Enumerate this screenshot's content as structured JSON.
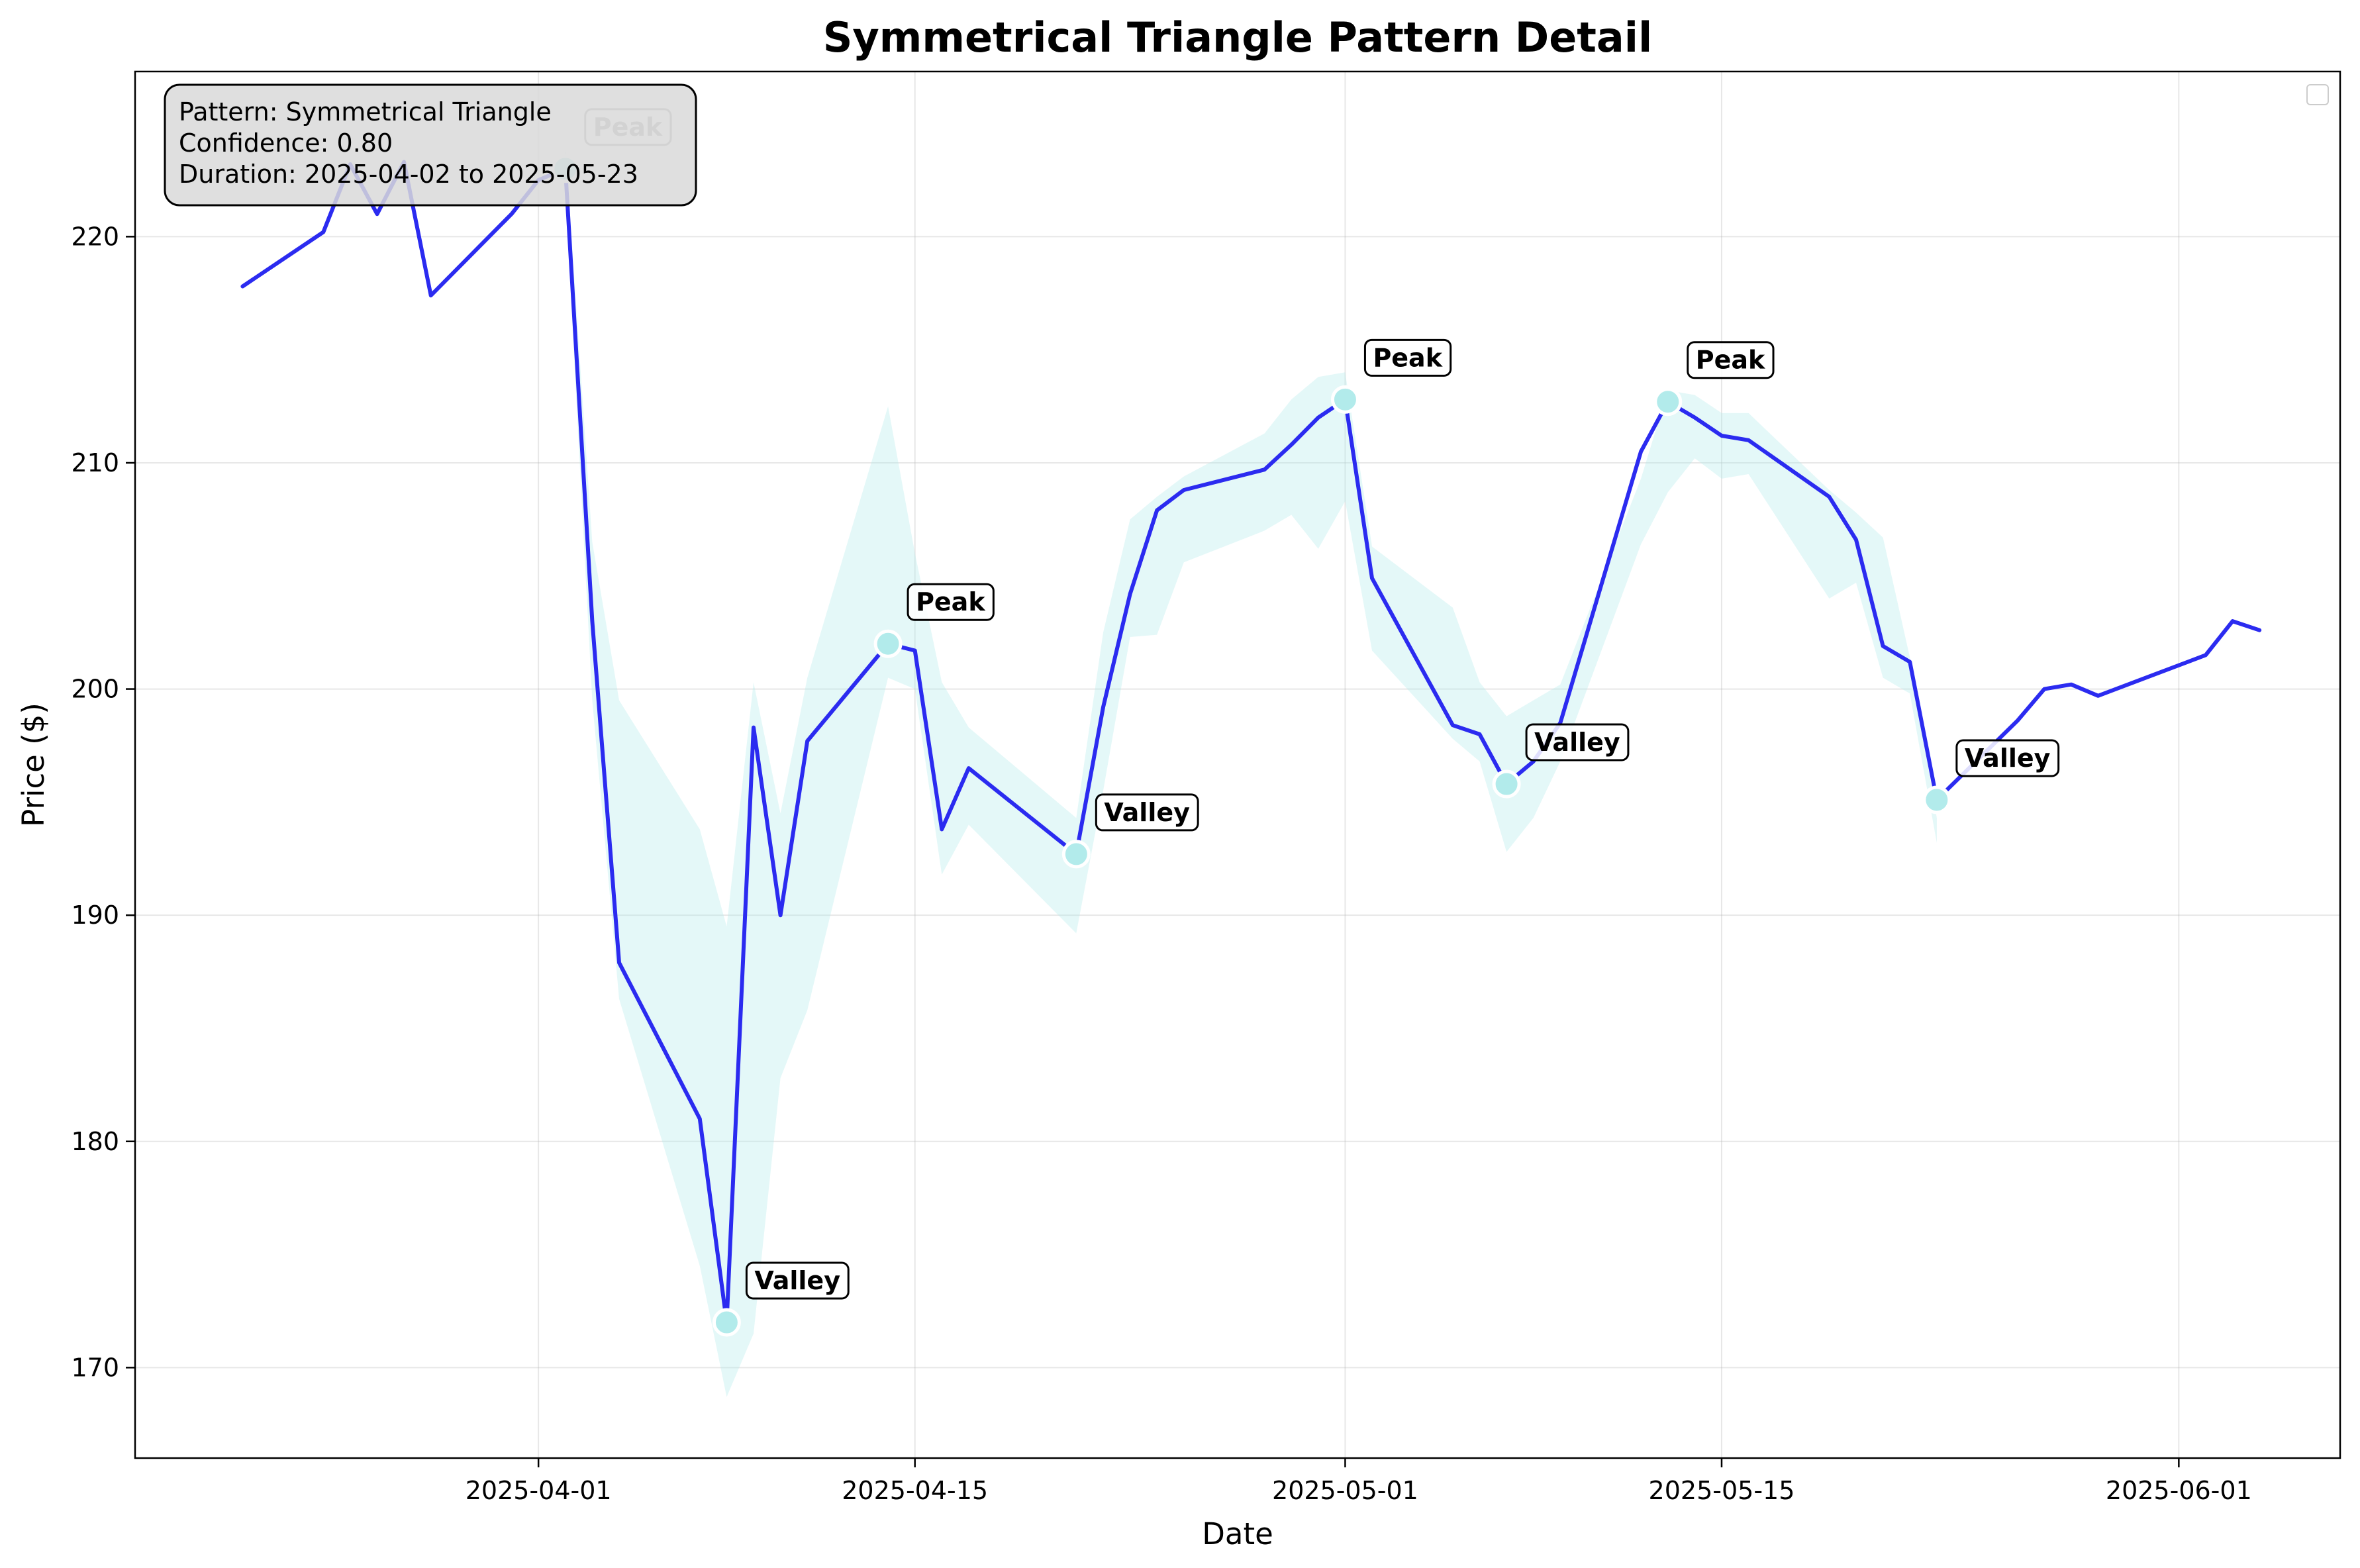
{
  "chart_data": {
    "type": "line",
    "title": "Symmetrical Triangle Pattern Detail",
    "xlabel": "Date",
    "ylabel": "Price ($)",
    "xlim": [
      "2025-03-17",
      "2025-06-07"
    ],
    "ylim": [
      166,
      227.3
    ],
    "x_ticks": [
      "2025-04-01",
      "2025-04-15",
      "2025-05-01",
      "2025-05-15",
      "2025-06-01"
    ],
    "y_ticks": [
      170,
      180,
      190,
      200,
      210,
      220
    ],
    "grid": true,
    "legend": "top-right (empty)",
    "colors": {
      "line": "#2b2bf0",
      "band": "#b2ebeb",
      "marker": "#b2ebeb",
      "info_box": "#d9d9d9"
    },
    "series": [
      {
        "x": [
          "2025-03-21",
          "2025-03-24",
          "2025-03-25",
          "2025-03-26",
          "2025-03-27",
          "2025-03-28",
          "2025-03-31",
          "2025-04-01",
          "2025-04-02",
          "2025-04-03",
          "2025-04-04",
          "2025-04-07",
          "2025-04-08",
          "2025-04-09",
          "2025-04-10",
          "2025-04-11",
          "2025-04-14",
          "2025-04-15",
          "2025-04-16",
          "2025-04-17",
          "2025-04-21",
          "2025-04-22",
          "2025-04-23",
          "2025-04-24",
          "2025-04-25",
          "2025-04-28",
          "2025-04-29",
          "2025-04-30",
          "2025-05-01",
          "2025-05-02",
          "2025-05-05",
          "2025-05-06",
          "2025-05-07",
          "2025-05-08",
          "2025-05-09",
          "2025-05-12",
          "2025-05-13",
          "2025-05-14",
          "2025-05-15",
          "2025-05-16",
          "2025-05-19",
          "2025-05-20",
          "2025-05-21",
          "2025-05-22",
          "2025-05-23",
          "2025-05-26",
          "2025-05-27",
          "2025-05-28",
          "2025-05-29",
          "2025-06-02",
          "2025-06-03",
          "2025-06-04"
        ],
        "values": [
          217.8,
          220.2,
          223.2,
          221.0,
          223.3,
          217.4,
          221.0,
          222.5,
          223.0,
          203.0,
          187.9,
          181.0,
          172.0,
          198.3,
          190.0,
          197.7,
          202.0,
          201.7,
          193.8,
          196.5,
          192.7,
          199.2,
          204.2,
          207.9,
          208.8,
          209.7,
          210.8,
          212.0,
          212.8,
          204.9,
          198.4,
          198.0,
          195.8,
          196.8,
          198.5,
          210.5,
          212.7,
          212.0,
          211.2,
          211.0,
          208.5,
          206.6,
          201.9,
          201.2,
          195.1,
          198.6,
          200.0,
          200.2,
          199.7,
          201.5,
          203.0,
          202.6
        ]
      }
    ],
    "confidence_band": {
      "x": [
        "2025-04-02",
        "2025-04-03",
        "2025-04-04",
        "2025-04-07",
        "2025-04-08",
        "2025-04-09",
        "2025-04-10",
        "2025-04-11",
        "2025-04-14",
        "2025-04-15",
        "2025-04-16",
        "2025-04-17",
        "2025-04-21",
        "2025-04-22",
        "2025-04-23",
        "2025-04-24",
        "2025-04-25",
        "2025-04-28",
        "2025-04-29",
        "2025-04-30",
        "2025-05-01",
        "2025-05-02",
        "2025-05-05",
        "2025-05-06",
        "2025-05-07",
        "2025-05-08",
        "2025-05-09",
        "2025-05-12",
        "2025-05-13",
        "2025-05-14",
        "2025-05-15",
        "2025-05-16",
        "2025-05-19",
        "2025-05-20",
        "2025-05-21",
        "2025-05-22",
        "2025-05-23"
      ],
      "upper": [
        224.0,
        206.5,
        199.5,
        193.8,
        189.5,
        200.3,
        194.5,
        200.5,
        212.5,
        206.0,
        200.3,
        198.3,
        194.3,
        202.5,
        207.5,
        208.5,
        209.4,
        211.3,
        212.8,
        213.8,
        214.0,
        206.3,
        203.6,
        200.3,
        198.8,
        199.5,
        200.2,
        209.3,
        213.2,
        213.0,
        212.2,
        212.2,
        208.8,
        207.8,
        206.7,
        201.4,
        194.3
      ],
      "lower": [
        222.0,
        199.5,
        186.3,
        174.5,
        168.7,
        171.5,
        182.8,
        185.8,
        200.5,
        200.0,
        191.8,
        194.0,
        189.2,
        195.5,
        202.3,
        202.4,
        205.6,
        207.0,
        207.7,
        206.2,
        208.3,
        201.7,
        197.8,
        196.8,
        192.8,
        194.3,
        196.8,
        206.4,
        208.7,
        210.2,
        209.3,
        209.5,
        204.0,
        204.7,
        200.5,
        199.8,
        193.2
      ]
    },
    "annotations": [
      {
        "date": "2025-04-02",
        "value": 223.0,
        "label": "Peak"
      },
      {
        "date": "2025-04-08",
        "value": 172.0,
        "label": "Valley"
      },
      {
        "date": "2025-04-14",
        "value": 202.0,
        "label": "Peak"
      },
      {
        "date": "2025-04-21",
        "value": 192.7,
        "label": "Valley"
      },
      {
        "date": "2025-05-01",
        "value": 212.8,
        "label": "Peak"
      },
      {
        "date": "2025-05-07",
        "value": 195.8,
        "label": "Valley"
      },
      {
        "date": "2025-05-13",
        "value": 212.7,
        "label": "Peak"
      },
      {
        "date": "2025-05-23",
        "value": 195.1,
        "label": "Valley"
      }
    ],
    "info_box": [
      "Pattern: Symmetrical Triangle",
      "Confidence: 0.80",
      "Duration: 2025-04-02 to 2025-05-23"
    ]
  }
}
